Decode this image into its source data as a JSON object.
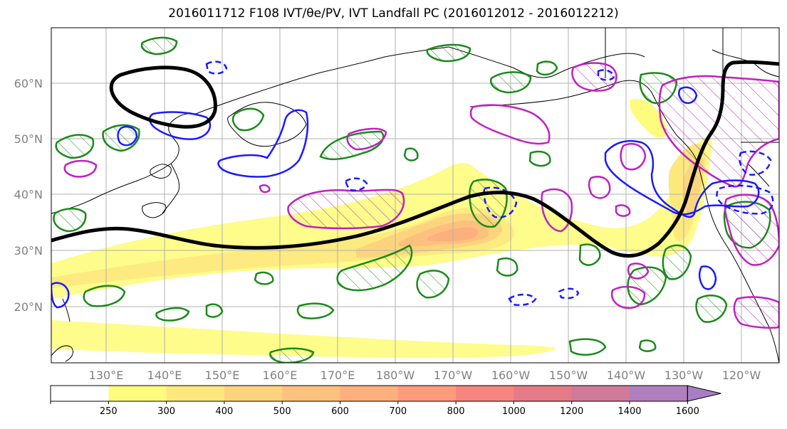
{
  "title": "2016011712 F108 IVT/θe/PV, IVT Landfall PC (2016012012 - 2016012212)",
  "lat_labels": [
    "60°N",
    "50°N",
    "40°N",
    "30°N",
    "20°N"
  ],
  "lon_labels": [
    "130°E",
    "140°E",
    "150°E",
    "160°E",
    "170°E",
    "180°W",
    "170°W",
    "160°W",
    "150°W",
    "140°W",
    "130°W",
    "120°W"
  ],
  "colorbar": {
    "ticks": [
      "250",
      "300",
      "400",
      "500",
      "600",
      "700",
      "800",
      "1000",
      "1200",
      "1400",
      "1600"
    ],
    "colors": [
      "#ffffff",
      "#fefc7e",
      "#fde87e",
      "#fdd47e",
      "#fdc17e",
      "#fdaf7e",
      "#fd9b7c",
      "#f5857e",
      "#e57b86",
      "#cf7a98",
      "#b07fbd"
    ]
  },
  "colors": {
    "green_contour": "#1a8a1a",
    "magenta_contour": "#c020c0",
    "blue_contour": "#1a1aff",
    "black_contour": "#000000",
    "coastline": "#000000"
  }
}
